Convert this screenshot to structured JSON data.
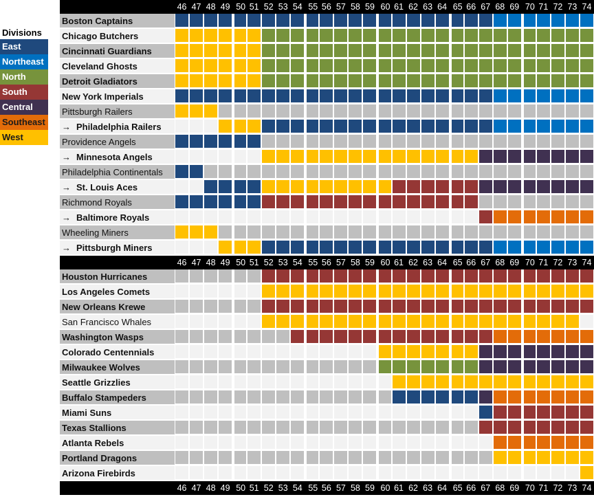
{
  "legend": {
    "title": "Divisions",
    "items": [
      {
        "key": "E",
        "label": "East",
        "color": "#1f497d",
        "text": "#ffffff"
      },
      {
        "key": "NE",
        "label": "Northeast",
        "color": "#0070c0",
        "text": "#ffffff"
      },
      {
        "key": "N",
        "label": "North",
        "color": "#77933c",
        "text": "#ffffff"
      },
      {
        "key": "S",
        "label": "South",
        "color": "#953735",
        "text": "#ffffff"
      },
      {
        "key": "C",
        "label": "Central",
        "color": "#403151",
        "text": "#ffffff"
      },
      {
        "key": "SE",
        "label": "Southeast",
        "color": "#e36c09",
        "text": "#1a1a1a"
      },
      {
        "key": "W",
        "label": "West",
        "color": "#ffc000",
        "text": "#1a1a1a"
      }
    ]
  },
  "inactive_colors": {
    "gray_row": "#bfbfbf",
    "light_row": "#f2f2f2"
  },
  "chart_data": {
    "type": "table",
    "years": [
      "46",
      "47",
      "48",
      "49",
      "50",
      "51",
      "52",
      "53",
      "54",
      "55",
      "56",
      "57",
      "58",
      "59",
      "60",
      "61",
      "62",
      "63",
      "64",
      "65",
      "66",
      "67",
      "68",
      "69",
      "70",
      "71",
      "72",
      "73",
      "74"
    ],
    "arrow_glyph": "→",
    "blocks": [
      {
        "teams": [
          {
            "name": "Boston Captains",
            "bold": true,
            "arrow": false,
            "segments": [
              [
                "E",
                46,
                67
              ],
              [
                "NE",
                68,
                74
              ]
            ]
          },
          {
            "name": "Chicago Butchers",
            "bold": true,
            "arrow": false,
            "segments": [
              [
                "W",
                46,
                51
              ],
              [
                "N",
                52,
                74
              ]
            ]
          },
          {
            "name": "Cincinnati Guardians",
            "bold": true,
            "arrow": false,
            "segments": [
              [
                "W",
                46,
                51
              ],
              [
                "N",
                52,
                74
              ]
            ]
          },
          {
            "name": "Cleveland Ghosts",
            "bold": true,
            "arrow": false,
            "segments": [
              [
                "W",
                46,
                51
              ],
              [
                "N",
                52,
                74
              ]
            ]
          },
          {
            "name": "Detroit Gladiators",
            "bold": true,
            "arrow": false,
            "segments": [
              [
                "W",
                46,
                51
              ],
              [
                "N",
                52,
                74
              ]
            ]
          },
          {
            "name": "New York Imperials",
            "bold": true,
            "arrow": false,
            "segments": [
              [
                "E",
                46,
                67
              ],
              [
                "NE",
                68,
                74
              ]
            ]
          },
          {
            "name": "Pittsburgh Railers",
            "bold": false,
            "arrow": false,
            "segments": [
              [
                "W",
                46,
                48
              ]
            ]
          },
          {
            "name": "Philadelphia Railers",
            "bold": true,
            "arrow": true,
            "segments": [
              [
                "W",
                49,
                51
              ],
              [
                "E",
                52,
                67
              ],
              [
                "NE",
                68,
                74
              ]
            ]
          },
          {
            "name": "Providence Angels",
            "bold": false,
            "arrow": false,
            "segments": [
              [
                "E",
                46,
                51
              ]
            ]
          },
          {
            "name": "Minnesota Angels",
            "bold": true,
            "arrow": true,
            "segments": [
              [
                "W",
                52,
                66
              ],
              [
                "C",
                67,
                74
              ]
            ]
          },
          {
            "name": "Philadelphia Continentals",
            "bold": false,
            "arrow": false,
            "segments": [
              [
                "E",
                46,
                47
              ]
            ]
          },
          {
            "name": "St. Louis Aces",
            "bold": true,
            "arrow": true,
            "segments": [
              [
                "E",
                48,
                51
              ],
              [
                "W",
                52,
                60
              ],
              [
                "S",
                61,
                66
              ],
              [
                "C",
                67,
                74
              ]
            ]
          },
          {
            "name": "Richmond Royals",
            "bold": false,
            "arrow": false,
            "segments": [
              [
                "E",
                46,
                51
              ],
              [
                "S",
                52,
                66
              ]
            ]
          },
          {
            "name": "Baltimore Royals",
            "bold": true,
            "arrow": true,
            "segments": [
              [
                "S",
                67,
                67
              ],
              [
                "SE",
                68,
                74
              ]
            ]
          },
          {
            "name": "Wheeling Miners",
            "bold": false,
            "arrow": false,
            "segments": [
              [
                "W",
                46,
                48
              ]
            ]
          },
          {
            "name": "Pittsburgh Miners",
            "bold": true,
            "arrow": true,
            "segments": [
              [
                "W",
                49,
                51
              ],
              [
                "E",
                52,
                67
              ],
              [
                "NE",
                68,
                74
              ]
            ]
          }
        ]
      },
      {
        "teams": [
          {
            "name": "Houston Hurricanes",
            "bold": true,
            "arrow": false,
            "segments": [
              [
                "S",
                52,
                74
              ]
            ]
          },
          {
            "name": "Los Angeles Comets",
            "bold": true,
            "arrow": false,
            "segments": [
              [
                "W",
                52,
                74
              ]
            ]
          },
          {
            "name": "New Orleans Krewe",
            "bold": true,
            "arrow": false,
            "segments": [
              [
                "S",
                52,
                74
              ]
            ]
          },
          {
            "name": "San Francisco Whales",
            "bold": false,
            "arrow": false,
            "segments": [
              [
                "W",
                52,
                73
              ]
            ]
          },
          {
            "name": "Washington Wasps",
            "bold": true,
            "arrow": false,
            "segments": [
              [
                "S",
                54,
                67
              ],
              [
                "SE",
                68,
                74
              ]
            ]
          },
          {
            "name": "Colorado Centennials",
            "bold": true,
            "arrow": false,
            "segments": [
              [
                "W",
                60,
                66
              ],
              [
                "C",
                67,
                74
              ]
            ]
          },
          {
            "name": "Milwaukee Wolves",
            "bold": true,
            "arrow": false,
            "segments": [
              [
                "N",
                60,
                66
              ],
              [
                "C",
                67,
                74
              ]
            ]
          },
          {
            "name": "Seattle Grizzlies",
            "bold": true,
            "arrow": false,
            "segments": [
              [
                "W",
                61,
                74
              ]
            ]
          },
          {
            "name": "Buffalo Stampeders",
            "bold": true,
            "arrow": false,
            "segments": [
              [
                "E",
                61,
                66
              ],
              [
                "C",
                67,
                67
              ],
              [
                "SE",
                68,
                74
              ]
            ]
          },
          {
            "name": "Miami Suns",
            "bold": true,
            "arrow": false,
            "segments": [
              [
                "E",
                67,
                67
              ],
              [
                "S",
                68,
                74
              ]
            ]
          },
          {
            "name": "Texas Stallions",
            "bold": true,
            "arrow": false,
            "segments": [
              [
                "S",
                67,
                74
              ]
            ]
          },
          {
            "name": "Atlanta Rebels",
            "bold": true,
            "arrow": false,
            "segments": [
              [
                "SE",
                68,
                74
              ]
            ]
          },
          {
            "name": "Portland Dragons",
            "bold": true,
            "arrow": false,
            "segments": [
              [
                "W",
                68,
                74
              ]
            ]
          },
          {
            "name": "Arizona Firebirds",
            "bold": true,
            "arrow": false,
            "segments": [
              [
                "W",
                74,
                74
              ]
            ]
          }
        ]
      }
    ]
  }
}
